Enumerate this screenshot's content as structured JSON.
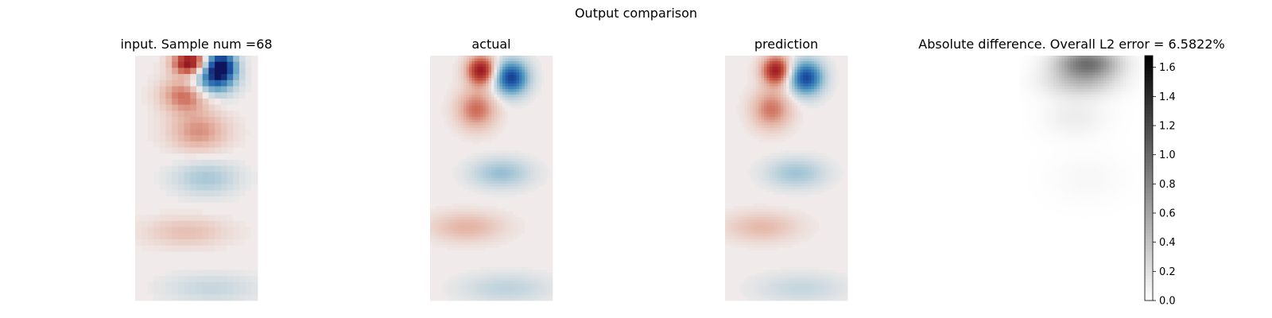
{
  "figure": {
    "suptitle": "Output comparison"
  },
  "chart_data": [
    {
      "type": "heatmap",
      "title": "input. Sample num =68",
      "colormap": "red-white-blue (diverging)",
      "axes_visible": false,
      "resolution": "coarse",
      "vortices": [
        {
          "sign": -1,
          "cx": 0.45,
          "cy": 0.03,
          "rx": 0.14,
          "ry": 0.05,
          "amp": 1.8
        },
        {
          "sign": 1,
          "cx": 0.7,
          "cy": 0.04,
          "rx": 0.12,
          "ry": 0.06,
          "amp": 1.9
        },
        {
          "sign": -1,
          "cx": 0.42,
          "cy": 0.16,
          "rx": 0.2,
          "ry": 0.07,
          "amp": 1.0
        },
        {
          "sign": 1,
          "cx": 0.62,
          "cy": 0.1,
          "rx": 0.18,
          "ry": 0.07,
          "amp": 1.3
        },
        {
          "sign": -1,
          "cx": 0.52,
          "cy": 0.31,
          "rx": 0.24,
          "ry": 0.08,
          "amp": 0.7
        },
        {
          "sign": 1,
          "cx": 0.58,
          "cy": 0.5,
          "rx": 0.26,
          "ry": 0.07,
          "amp": 0.5
        },
        {
          "sign": -1,
          "cx": 0.42,
          "cy": 0.72,
          "rx": 0.34,
          "ry": 0.06,
          "amp": 0.4
        },
        {
          "sign": 1,
          "cx": 0.62,
          "cy": 0.95,
          "rx": 0.38,
          "ry": 0.06,
          "amp": 0.3
        }
      ]
    },
    {
      "type": "heatmap",
      "title": "actual",
      "colormap": "red-white-blue (diverging)",
      "axes_visible": false,
      "resolution": "fine",
      "vortices": [
        {
          "sign": -1,
          "cx": 0.42,
          "cy": 0.06,
          "rx": 0.12,
          "ry": 0.06,
          "amp": 1.6
        },
        {
          "sign": 1,
          "cx": 0.66,
          "cy": 0.09,
          "rx": 0.14,
          "ry": 0.07,
          "amp": 1.7
        },
        {
          "sign": -1,
          "cx": 0.38,
          "cy": 0.22,
          "rx": 0.16,
          "ry": 0.08,
          "amp": 0.9
        },
        {
          "sign": 1,
          "cx": 0.58,
          "cy": 0.48,
          "rx": 0.24,
          "ry": 0.06,
          "amp": 0.6
        },
        {
          "sign": -1,
          "cx": 0.3,
          "cy": 0.7,
          "rx": 0.3,
          "ry": 0.06,
          "amp": 0.5
        },
        {
          "sign": 1,
          "cx": 0.62,
          "cy": 0.95,
          "rx": 0.36,
          "ry": 0.06,
          "amp": 0.35
        }
      ]
    },
    {
      "type": "heatmap",
      "title": "prediction",
      "colormap": "red-white-blue (diverging)",
      "axes_visible": false,
      "resolution": "fine",
      "vortices": [
        {
          "sign": -1,
          "cx": 0.42,
          "cy": 0.06,
          "rx": 0.12,
          "ry": 0.06,
          "amp": 1.55
        },
        {
          "sign": 1,
          "cx": 0.66,
          "cy": 0.09,
          "rx": 0.14,
          "ry": 0.07,
          "amp": 1.65
        },
        {
          "sign": -1,
          "cx": 0.38,
          "cy": 0.22,
          "rx": 0.16,
          "ry": 0.08,
          "amp": 0.85
        },
        {
          "sign": 1,
          "cx": 0.58,
          "cy": 0.48,
          "rx": 0.24,
          "ry": 0.06,
          "amp": 0.55
        },
        {
          "sign": -1,
          "cx": 0.3,
          "cy": 0.7,
          "rx": 0.3,
          "ry": 0.06,
          "amp": 0.45
        },
        {
          "sign": 1,
          "cx": 0.62,
          "cy": 0.95,
          "rx": 0.36,
          "ry": 0.06,
          "amp": 0.3
        }
      ]
    },
    {
      "type": "heatmap",
      "title": "Absolute difference. Overall L2 error = 6.5822%",
      "colormap": "gray (white to black)",
      "axes_visible": false,
      "resolution": "fine",
      "colorbar": {
        "min": 0.0,
        "max": 1.68,
        "ticks": [
          0.0,
          0.2,
          0.4,
          0.6,
          0.8,
          1.0,
          1.2,
          1.4,
          1.6
        ],
        "tick_labels": [
          "0.0",
          "0.2",
          "0.4",
          "0.6",
          "0.8",
          "1.0",
          "1.2",
          "1.4",
          "1.6"
        ]
      },
      "blobs": [
        {
          "cx": 0.55,
          "cy": 0.03,
          "rx": 0.25,
          "ry": 0.06,
          "amp": 0.9
        },
        {
          "cx": 0.5,
          "cy": 0.11,
          "rx": 0.3,
          "ry": 0.06,
          "amp": 0.35
        },
        {
          "cx": 0.45,
          "cy": 0.25,
          "rx": 0.25,
          "ry": 0.08,
          "amp": 0.12
        },
        {
          "cx": 0.55,
          "cy": 0.5,
          "rx": 0.3,
          "ry": 0.1,
          "amp": 0.05
        }
      ]
    }
  ]
}
